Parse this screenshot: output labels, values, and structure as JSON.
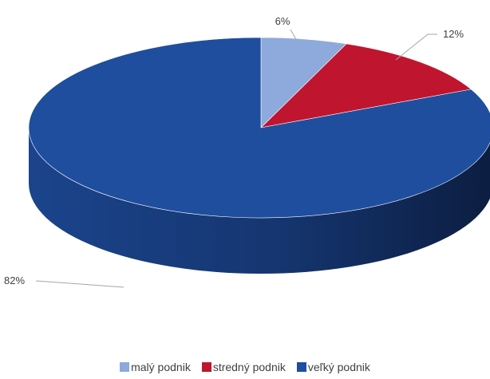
{
  "chart_data": {
    "type": "pie",
    "subtype": "3d",
    "categories": [
      "malý podnik",
      "stredný podnik",
      "veľký podnik"
    ],
    "values": [
      6,
      12,
      82
    ],
    "labels": [
      "6%",
      "12%",
      "82%"
    ],
    "colors": [
      "#8EA9DB",
      "#C0152F",
      "#1F4E9E"
    ],
    "legend_position": "bottom"
  }
}
